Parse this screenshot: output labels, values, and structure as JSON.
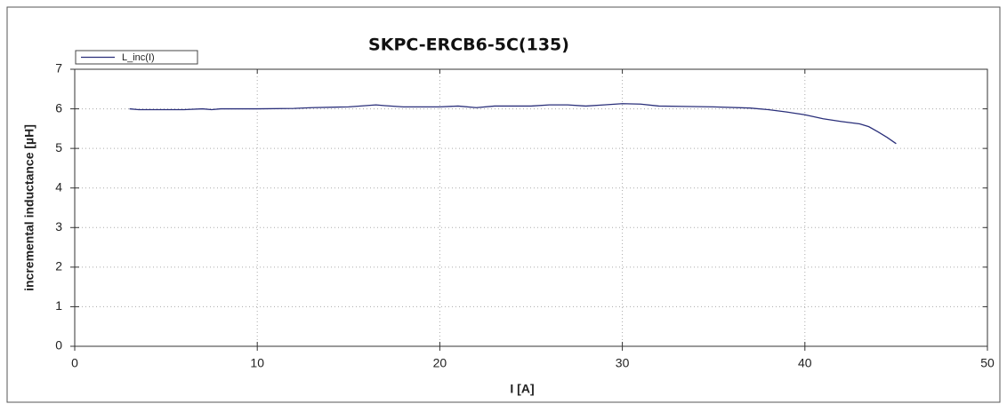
{
  "chart_data": {
    "type": "line",
    "title": "SKPC-ERCB6-5C(135)",
    "x_label": "I [A]",
    "y_label": "incremental inductance [µH]",
    "x": [
      3,
      3.5,
      5,
      6,
      7,
      7.5,
      8,
      10,
      12,
      13,
      15,
      16.5,
      17,
      18,
      20,
      21,
      22,
      23,
      25,
      26,
      27,
      28,
      29,
      30,
      31,
      32,
      35,
      37,
      38,
      39,
      40,
      41,
      42,
      43,
      43.5,
      44,
      44.5,
      45
    ],
    "series": [
      {
        "name": "L_inc(I)",
        "color": "#2a2f7a",
        "values": [
          6.0,
          5.98,
          5.98,
          5.98,
          6.0,
          5.98,
          6.0,
          6.0,
          6.01,
          6.03,
          6.05,
          6.1,
          6.08,
          6.05,
          6.05,
          6.07,
          6.03,
          6.07,
          6.07,
          6.1,
          6.1,
          6.07,
          6.1,
          6.13,
          6.12,
          6.07,
          6.05,
          6.02,
          5.98,
          5.92,
          5.85,
          5.75,
          5.68,
          5.62,
          5.55,
          5.42,
          5.28,
          5.12
        ]
      }
    ],
    "xlim": [
      0,
      50
    ],
    "xticks": [
      0,
      10,
      20,
      30,
      40,
      50
    ],
    "ylim": [
      0,
      7
    ],
    "yticks": [
      0,
      1,
      2,
      3,
      4,
      5,
      6,
      7
    ],
    "grid": true,
    "legend": "upper left"
  }
}
